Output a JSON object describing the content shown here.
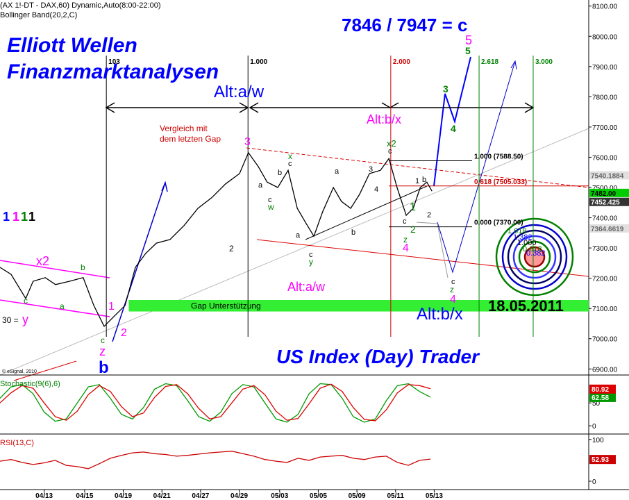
{
  "chart_data": [
    {
      "type": "line",
      "title": "(AX 1!-DT - DAX,60) Dynamic,Auto(8:00-22:00)",
      "subtitle": "Bollinger Band(20,2,C)",
      "color": "#000000",
      "xlim": [
        0,
        160
      ],
      "ylim": [
        6880,
        8120
      ],
      "yticks": [
        {
          "value": 6900,
          "label": "6900.00"
        },
        {
          "value": 7000,
          "label": "7000.00"
        },
        {
          "value": 7100,
          "label": "7100.00"
        },
        {
          "value": 7200,
          "label": "7200.00"
        },
        {
          "value": 7300,
          "label": "7300.00"
        },
        {
          "value": 7400,
          "label": "7400.00"
        },
        {
          "value": 7500,
          "label": "7500.00"
        },
        {
          "value": 7600,
          "label": "7600.00"
        },
        {
          "value": 7700,
          "label": "7700.00"
        },
        {
          "value": 7800,
          "label": "7800.00"
        },
        {
          "value": 7900,
          "label": "7900.00"
        },
        {
          "value": 8000,
          "label": "8000.00"
        },
        {
          "value": 8100,
          "label": "8100.00"
        }
      ],
      "x": [
        0,
        3,
        7,
        9,
        12.3,
        15.1,
        18.9,
        22.6,
        25.5,
        28.3,
        31.1,
        34,
        36.8,
        39.6,
        42.5,
        46.2,
        50,
        53.8,
        57.5,
        61.3,
        65.1,
        67.5,
        70.2,
        72.6,
        75.5,
        78.3,
        80.8,
        83,
        85.3,
        87.7,
        90.6,
        92.8,
        95.3,
        97.7,
        100.4,
        103.4,
        105.7,
        107.9,
        110.4,
        112.3,
        114.2,
        116,
        117.4
      ],
      "values": [
        7236,
        7213,
        7133,
        7190,
        7202,
        7179,
        7190,
        7202,
        7110,
        7041,
        7075,
        7110,
        7236,
        7282,
        7316,
        7328,
        7374,
        7431,
        7466,
        7512,
        7546,
        7615,
        7569,
        7518,
        7500,
        7557,
        7431,
        7385,
        7339,
        7420,
        7500,
        7454,
        7431,
        7477,
        7546,
        7557,
        7596,
        7500,
        7408,
        7431,
        7500,
        7518,
        7488
      ],
      "price_tags": [
        {
          "value": 7540.1884,
          "label": "7540.1884",
          "bg": "#e0e0e0",
          "fg": "#666666"
        },
        {
          "value": 7482,
          "label": "7482.00",
          "bg": "#00cc00",
          "fg": "#000000"
        },
        {
          "value": 7452.425,
          "label": "7452.425",
          "bg": "#333333",
          "fg": "#ffffff"
        },
        {
          "value": 7364.6619,
          "label": "7364.6619",
          "bg": "#e0e0e0",
          "fg": "#666666"
        }
      ],
      "levels": [
        {
          "value": 7588.5,
          "label": "1.000 (7588.50)",
          "color": "#000000"
        },
        {
          "value": 7505.033,
          "label": "0.618 (7505.033)",
          "color": "#cc0000"
        },
        {
          "value": 7370,
          "label": "0.000 (7370.00)",
          "color": "#000000"
        }
      ],
      "vlines": [
        {
          "x": 28.9,
          "label": "103",
          "color": "#000000"
        },
        {
          "x": 67.4,
          "label": "1.000",
          "color": "#000000"
        },
        {
          "x": 106.2,
          "label": "2.000",
          "color": "#cc0000"
        },
        {
          "x": 130.2,
          "label": "2.618",
          "color": "#008000"
        },
        {
          "x": 144.9,
          "label": "3.000",
          "color": "#008000"
        }
      ],
      "band": {
        "label": "Gap Unterstützung",
        "from": 35,
        "range": [
          7090,
          7128
        ],
        "color": "#33ee33"
      },
      "annotations": [
        {
          "text": "Elliott Wellen",
          "color": "#0000ff"
        },
        {
          "text": "Finanzmarktanalysen",
          "color": "#0000ff"
        },
        {
          "text": "7846 / 7947 = c",
          "color": "#0000ff"
        },
        {
          "text": "5",
          "color": "#ff00ff"
        },
        {
          "text": "5",
          "color": "#008000"
        },
        {
          "text": "Alt:a/w",
          "color": "#0000ff"
        },
        {
          "text": "Alt:b/x",
          "color": "#ff00ff"
        },
        {
          "text": "Vergleich mit",
          "color": "#cc0000"
        },
        {
          "text": "dem letzten Gap",
          "color": "#cc0000"
        },
        {
          "text": "3",
          "color": "#ff00ff"
        },
        {
          "text": "3",
          "color": "#008000"
        },
        {
          "text": "4",
          "color": "#008000"
        },
        {
          "text": "x2",
          "color": "#008000"
        },
        {
          "text": "x",
          "color": "#008000"
        },
        {
          "text": "w",
          "color": "#008000"
        },
        {
          "text": "y",
          "color": "#008000"
        },
        {
          "text": "1",
          "color": "#008000"
        },
        {
          "text": "2",
          "color": "#008000"
        },
        {
          "text": "z",
          "color": "#008000"
        },
        {
          "text": "4",
          "color": "#ff00ff"
        },
        {
          "text": "2",
          "color": "#000000"
        },
        {
          "text": "Alt:a/w",
          "color": "#ff00ff"
        },
        {
          "text": "Alt:b/x",
          "color": "#0000ff"
        },
        {
          "text": "18.05.2011",
          "color": "#000000"
        },
        {
          "text": "US Index (Day) Trader",
          "color": "#0000ff"
        },
        {
          "text": "z",
          "color": "#008000"
        },
        {
          "text": "4",
          "color": "#ff00ff"
        },
        {
          "text": "c",
          "color": "#000000"
        },
        {
          "text": "x2",
          "color": "#ff00ff"
        },
        {
          "text": "b",
          "color": "#008000"
        },
        {
          "text": "c",
          "color": "#008000"
        },
        {
          "text": "a",
          "color": "#008000"
        },
        {
          "text": "y",
          "color": "#ff00ff"
        },
        {
          "text": "30 =",
          "color": "#000000"
        },
        {
          "text": "1",
          "color": "#ff00ff"
        },
        {
          "text": "2",
          "color": "#ff00ff"
        },
        {
          "text": "c",
          "color": "#008000"
        },
        {
          "text": "z",
          "color": "#ff00ff"
        },
        {
          "text": "b",
          "color": "#0000ff"
        },
        {
          "text": "1",
          "color": "#0000ff"
        },
        {
          "text": "1",
          "color": "#ff00ff"
        },
        {
          "text": "1",
          "color": "#008000"
        },
        {
          "text": "1",
          "color": "#000000"
        },
        {
          "text": "c",
          "color": "#000000"
        },
        {
          "text": "c",
          "color": "#000000"
        },
        {
          "text": "2",
          "color": "#000000"
        },
        {
          "text": "1",
          "color": "#000000"
        },
        {
          "text": "b",
          "color": "#000000"
        },
        {
          "text": "a",
          "color": "#000000"
        },
        {
          "text": "b",
          "color": "#000000"
        },
        {
          "text": "c",
          "color": "#000000"
        },
        {
          "text": "c",
          "color": "#000000"
        },
        {
          "text": "a",
          "color": "#000000"
        },
        {
          "text": "c",
          "color": "#000000"
        },
        {
          "text": "b",
          "color": "#000000"
        },
        {
          "text": "a",
          "color": "#000000"
        },
        {
          "text": "3",
          "color": "#000000"
        },
        {
          "text": "4",
          "color": "#000000"
        },
        {
          "text": "1.618",
          "color": "#008000"
        },
        {
          "text": "1.382",
          "color": "#0000ff"
        },
        {
          "text": "1.000",
          "color": "#000000"
        },
        {
          "text": "0.618",
          "color": "#008000"
        },
        {
          "text": "0.382",
          "color": "#0000ff"
        },
        {
          "text": "© eSignal, 2010",
          "color": "#000000"
        }
      ]
    },
    {
      "type": "line",
      "title": "Stochastic(9(6),6)",
      "title_color": "#008000",
      "xlim": [
        0,
        160
      ],
      "ylim": [
        -18,
        111
      ],
      "yticks": [
        0,
        50
      ],
      "last_value_labels": true,
      "x": [
        0,
        3,
        6,
        9,
        12,
        15,
        18,
        21,
        24,
        27,
        30,
        33,
        36,
        39,
        42,
        45,
        48,
        51,
        54,
        57,
        60,
        63,
        66,
        69,
        72,
        75,
        78,
        81,
        84,
        87,
        90,
        93,
        96,
        99,
        102,
        105,
        108,
        111,
        114,
        117
      ],
      "series": [
        {
          "color": "#009900",
          "values": [
            60,
            85,
            90,
            70,
            30,
            10,
            15,
            50,
            85,
            90,
            60,
            25,
            15,
            40,
            80,
            92,
            88,
            55,
            20,
            10,
            30,
            70,
            90,
            85,
            50,
            15,
            8,
            25,
            70,
            92,
            90,
            60,
            20,
            8,
            15,
            55,
            88,
            92,
            75,
            62.58
          ]
        },
        {
          "color": "#dd0000",
          "values": [
            50,
            72,
            88,
            82,
            50,
            20,
            12,
            32,
            68,
            88,
            75,
            42,
            20,
            28,
            62,
            86,
            90,
            70,
            38,
            15,
            20,
            50,
            80,
            88,
            68,
            32,
            12,
            16,
            48,
            82,
            91,
            75,
            40,
            14,
            11,
            35,
            72,
            90,
            88,
            80.92
          ]
        }
      ]
    },
    {
      "type": "line",
      "title": "RSI(13,C)",
      "title_color": "#cc0000",
      "xlim": [
        0,
        160
      ],
      "ylim": [
        -20,
        113
      ],
      "yticks": [
        0,
        100
      ],
      "last_value_labels": true,
      "xticks": [
        {
          "value": 12,
          "label": "04/13"
        },
        {
          "value": 23,
          "label": "04/15"
        },
        {
          "value": 33.5,
          "label": "04/19"
        },
        {
          "value": 44,
          "label": "04/21"
        },
        {
          "value": 54.5,
          "label": "04/27"
        },
        {
          "value": 65,
          "label": "04/29"
        },
        {
          "value": 76,
          "label": "05/03"
        },
        {
          "value": 86.5,
          "label": "05/05"
        },
        {
          "value": 97,
          "label": "05/09"
        },
        {
          "value": 107.5,
          "label": "05/11"
        },
        {
          "value": 118,
          "label": "05/13"
        }
      ],
      "x": [
        0,
        3,
        6,
        9,
        12,
        15,
        18,
        21,
        24,
        27,
        30,
        33,
        36,
        39,
        42,
        45,
        48,
        51,
        54,
        57,
        60,
        63,
        66,
        69,
        72,
        75,
        78,
        81,
        84,
        87,
        90,
        93,
        96,
        99,
        102,
        105,
        108,
        111,
        114,
        117
      ],
      "series": [
        {
          "color": "#cc0000",
          "values": [
            48,
            52,
            45,
            40,
            44,
            50,
            38,
            35,
            30,
            42,
            55,
            62,
            68,
            70,
            66,
            64,
            60,
            62,
            65,
            68,
            70,
            72,
            66,
            60,
            52,
            48,
            45,
            55,
            50,
            58,
            60,
            62,
            55,
            52,
            58,
            60,
            45,
            38,
            50,
            52.93
          ]
        }
      ]
    }
  ]
}
